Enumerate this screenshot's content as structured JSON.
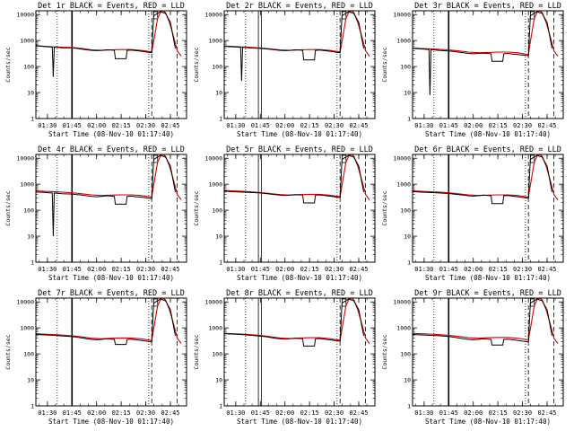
{
  "figure": {
    "background": "#ffffff",
    "event_color": "#000000",
    "lld_color": "#d40000"
  },
  "chart_data": {
    "type": "line",
    "ylabel": "Counts/sec",
    "xlabel": "Start Time (08-Nov-10 01:17:40)",
    "ylim": [
      1,
      14000
    ],
    "yscale": "log",
    "xlim": [
      1.383,
      2.914
    ],
    "x_ticks": [
      1.5,
      1.75,
      2.0,
      2.25,
      2.5,
      2.75
    ],
    "x_tick_labels": [
      "01:30",
      "01:45",
      "02:00",
      "02:15",
      "02:30",
      "02:45"
    ],
    "y_ticks": [
      1,
      10,
      100,
      1000,
      10000
    ],
    "y_tick_labels": [
      "1",
      "10",
      "100",
      "1000",
      "10000"
    ],
    "markers": {
      "dotted": [
        1.6,
        2.53
      ],
      "dashed": [
        2.56,
        2.818
      ],
      "legend_box": [
        2.58,
        2.62
      ]
    },
    "panels": [
      {
        "title": "Det 1r BLACK = Events, RED = LLD",
        "event_x": [
          1.383,
          1.45,
          1.52,
          1.55,
          1.56,
          1.57,
          1.6,
          1.65,
          1.75,
          1.8,
          1.85,
          1.9,
          1.95,
          2.0,
          2.05,
          2.1,
          2.15,
          2.18,
          2.19,
          2.3,
          2.31,
          2.35,
          2.4,
          2.45,
          2.5,
          2.53,
          2.56,
          2.58,
          2.6,
          2.65,
          2.7,
          2.75,
          2.8
        ],
        "event_y": [
          650,
          600,
          570,
          560,
          40,
          560,
          550,
          530,
          520,
          500,
          470,
          440,
          420,
          410,
          420,
          440,
          430,
          420,
          200,
          200,
          420,
          430,
          410,
          390,
          370,
          350,
          340,
          9000,
          10000,
          13000,
          11000,
          5000,
          500
        ],
        "lld_x": [
          1.383,
          1.45,
          1.55,
          1.65,
          1.75,
          1.85,
          1.95,
          2.05,
          2.15,
          2.25,
          2.35,
          2.45,
          2.53,
          2.56,
          2.58,
          2.62,
          2.66,
          2.7,
          2.74,
          2.78,
          2.82,
          2.86
        ],
        "lld_y": [
          640,
          610,
          580,
          560,
          540,
          500,
          440,
          420,
          440,
          450,
          450,
          420,
          380,
          370,
          900,
          7000,
          15000,
          12000,
          5000,
          1500,
          400,
          250
        ],
        "vline_solid": [
          1.75
        ]
      },
      {
        "title": "Det 2r BLACK = Events, RED = LLD",
        "event_x": [
          1.383,
          1.45,
          1.52,
          1.55,
          1.56,
          1.57,
          1.6,
          1.65,
          1.75,
          1.8,
          1.85,
          1.9,
          1.95,
          2.0,
          2.05,
          2.1,
          2.15,
          2.18,
          2.19,
          2.3,
          2.31,
          2.35,
          2.4,
          2.45,
          2.5,
          2.53,
          2.56,
          2.58,
          2.6,
          2.65,
          2.7,
          2.75,
          2.8
        ],
        "event_y": [
          600,
          580,
          560,
          550,
          28,
          550,
          540,
          520,
          500,
          480,
          460,
          440,
          420,
          410,
          420,
          440,
          430,
          420,
          180,
          180,
          420,
          430,
          410,
          390,
          370,
          350,
          340,
          9000,
          10000,
          13000,
          11000,
          5000,
          500
        ],
        "lld_x": [
          1.383,
          1.45,
          1.55,
          1.65,
          1.75,
          1.85,
          1.95,
          2.05,
          2.15,
          2.25,
          2.35,
          2.45,
          2.53,
          2.56,
          2.58,
          2.62,
          2.66,
          2.7,
          2.74,
          2.78,
          2.82,
          2.86
        ],
        "lld_y": [
          620,
          600,
          570,
          550,
          520,
          480,
          440,
          420,
          440,
          450,
          450,
          420,
          380,
          370,
          900,
          7000,
          15000,
          12000,
          5000,
          1500,
          400,
          250
        ],
        "vline_solid": [
          1.73,
          1.76
        ]
      },
      {
        "title": "Det 3r BLACK = Events, RED = LLD",
        "event_x": [
          1.383,
          1.45,
          1.52,
          1.55,
          1.56,
          1.57,
          1.6,
          1.65,
          1.75,
          1.8,
          1.85,
          1.9,
          1.95,
          2.0,
          2.05,
          2.1,
          2.15,
          2.18,
          2.19,
          2.3,
          2.31,
          2.35,
          2.4,
          2.45,
          2.5,
          2.53,
          2.56,
          2.58,
          2.6,
          2.65,
          2.7,
          2.75,
          2.8
        ],
        "event_y": [
          500,
          480,
          460,
          450,
          8,
          450,
          440,
          420,
          400,
          380,
          360,
          340,
          320,
          310,
          320,
          330,
          320,
          310,
          160,
          160,
          310,
          320,
          300,
          290,
          280,
          270,
          260,
          9000,
          10000,
          13000,
          11000,
          5000,
          500
        ],
        "lld_x": [
          1.383,
          1.45,
          1.55,
          1.65,
          1.75,
          1.85,
          1.95,
          2.05,
          2.15,
          2.25,
          2.35,
          2.45,
          2.53,
          2.56,
          2.58,
          2.62,
          2.66,
          2.7,
          2.74,
          2.78,
          2.82,
          2.86
        ],
        "lld_y": [
          520,
          500,
          480,
          460,
          440,
          400,
          360,
          340,
          350,
          360,
          360,
          340,
          300,
          290,
          900,
          7000,
          15000,
          12000,
          5000,
          1500,
          400,
          250
        ],
        "vline_solid": [
          1.75
        ]
      },
      {
        "title": "Det 4r BLACK = Events, RED = LLD",
        "event_x": [
          1.383,
          1.45,
          1.52,
          1.55,
          1.56,
          1.57,
          1.6,
          1.65,
          1.75,
          1.8,
          1.85,
          1.9,
          1.95,
          2.0,
          2.05,
          2.1,
          2.15,
          2.18,
          2.19,
          2.3,
          2.31,
          2.35,
          2.4,
          2.45,
          2.5,
          2.53,
          2.56,
          2.58,
          2.6,
          2.65,
          2.7,
          2.75,
          2.8
        ],
        "event_y": [
          500,
          490,
          470,
          460,
          10,
          460,
          450,
          430,
          420,
          400,
          380,
          360,
          340,
          330,
          340,
          360,
          350,
          340,
          170,
          170,
          340,
          350,
          330,
          320,
          300,
          290,
          280,
          9000,
          10000,
          13000,
          11000,
          5000,
          500
        ],
        "lld_x": [
          1.383,
          1.45,
          1.55,
          1.65,
          1.75,
          1.85,
          1.95,
          2.05,
          2.15,
          2.25,
          2.35,
          2.45,
          2.53,
          2.56,
          2.58,
          2.62,
          2.66,
          2.7,
          2.74,
          2.78,
          2.82,
          2.86
        ],
        "lld_y": [
          560,
          540,
          520,
          500,
          470,
          430,
          390,
          370,
          380,
          390,
          390,
          370,
          330,
          320,
          900,
          7000,
          15000,
          12000,
          5000,
          1500,
          400,
          250
        ],
        "vline_solid": [
          1.75
        ]
      },
      {
        "title": "Det 5r BLACK = Events, RED = LLD",
        "event_x": [
          1.383,
          1.45,
          1.55,
          1.65,
          1.75,
          1.8,
          1.85,
          1.9,
          1.95,
          2.0,
          2.05,
          2.1,
          2.15,
          2.18,
          2.19,
          2.3,
          2.31,
          2.35,
          2.4,
          2.45,
          2.5,
          2.53,
          2.56,
          2.58,
          2.6,
          2.65,
          2.7,
          2.75,
          2.8
        ],
        "event_y": [
          550,
          520,
          500,
          480,
          460,
          440,
          420,
          400,
          380,
          370,
          380,
          400,
          390,
          380,
          190,
          190,
          380,
          390,
          370,
          350,
          330,
          320,
          310,
          9000,
          10000,
          13000,
          11000,
          5000,
          500
        ],
        "lld_x": [
          1.383,
          1.45,
          1.55,
          1.65,
          1.75,
          1.85,
          1.95,
          2.05,
          2.15,
          2.25,
          2.35,
          2.45,
          2.53,
          2.56,
          2.58,
          2.62,
          2.66,
          2.7,
          2.74,
          2.78,
          2.82,
          2.86
        ],
        "lld_y": [
          580,
          560,
          540,
          510,
          480,
          440,
          400,
          380,
          400,
          410,
          410,
          380,
          340,
          330,
          900,
          7000,
          15000,
          12000,
          5000,
          1500,
          400,
          250
        ],
        "vline_solid": [
          1.73,
          1.76
        ]
      },
      {
        "title": "Det 6r BLACK = Events, RED = LLD",
        "event_x": [
          1.383,
          1.45,
          1.55,
          1.65,
          1.75,
          1.8,
          1.85,
          1.9,
          1.95,
          2.0,
          2.05,
          2.1,
          2.15,
          2.18,
          2.19,
          2.3,
          2.31,
          2.35,
          2.4,
          2.45,
          2.5,
          2.53,
          2.56,
          2.58,
          2.6,
          2.65,
          2.7,
          2.75,
          2.8
        ],
        "event_y": [
          520,
          500,
          480,
          460,
          440,
          420,
          400,
          380,
          360,
          350,
          360,
          380,
          370,
          360,
          180,
          180,
          360,
          370,
          350,
          330,
          310,
          300,
          290,
          9000,
          10000,
          13000,
          11000,
          5000,
          500
        ],
        "lld_x": [
          1.383,
          1.45,
          1.55,
          1.65,
          1.75,
          1.85,
          1.95,
          2.05,
          2.15,
          2.25,
          2.35,
          2.45,
          2.53,
          2.56,
          2.58,
          2.62,
          2.66,
          2.7,
          2.74,
          2.78,
          2.82,
          2.86
        ],
        "lld_y": [
          560,
          540,
          520,
          500,
          470,
          430,
          390,
          370,
          380,
          390,
          390,
          370,
          330,
          320,
          900,
          7000,
          15000,
          12000,
          5000,
          1500,
          400,
          250
        ],
        "vline_solid": [
          1.75
        ]
      },
      {
        "title": "Det 7r BLACK = Events, RED = LLD",
        "event_x": [
          1.383,
          1.45,
          1.55,
          1.65,
          1.75,
          1.8,
          1.85,
          1.9,
          1.95,
          2.0,
          2.05,
          2.1,
          2.15,
          2.18,
          2.19,
          2.3,
          2.31,
          2.35,
          2.4,
          2.45,
          2.5,
          2.53,
          2.56,
          2.58,
          2.6,
          2.65,
          2.7,
          2.75,
          2.8
        ],
        "event_y": [
          560,
          540,
          520,
          490,
          460,
          440,
          410,
          380,
          360,
          350,
          360,
          380,
          370,
          360,
          230,
          230,
          360,
          370,
          350,
          330,
          310,
          300,
          290,
          9000,
          10000,
          13000,
          11000,
          5000,
          500
        ],
        "lld_x": [
          1.383,
          1.45,
          1.55,
          1.65,
          1.75,
          1.85,
          1.95,
          2.05,
          2.15,
          2.25,
          2.35,
          2.45,
          2.53,
          2.56,
          2.58,
          2.62,
          2.66,
          2.7,
          2.74,
          2.78,
          2.82,
          2.86
        ],
        "lld_y": [
          600,
          580,
          560,
          530,
          500,
          450,
          400,
          380,
          400,
          410,
          410,
          380,
          340,
          330,
          900,
          7000,
          15000,
          12000,
          5000,
          1500,
          400,
          250
        ],
        "vline_solid": [
          1.75
        ]
      },
      {
        "title": "Det 8r BLACK = Events, RED = LLD",
        "event_x": [
          1.383,
          1.45,
          1.55,
          1.65,
          1.75,
          1.8,
          1.85,
          1.9,
          1.95,
          2.0,
          2.05,
          2.1,
          2.15,
          2.18,
          2.19,
          2.3,
          2.31,
          2.35,
          2.4,
          2.45,
          2.5,
          2.53,
          2.56,
          2.58,
          2.6,
          2.65,
          2.7,
          2.75,
          2.8
        ],
        "event_y": [
          600,
          580,
          560,
          520,
          480,
          460,
          430,
          400,
          380,
          370,
          380,
          400,
          390,
          380,
          200,
          200,
          380,
          390,
          370,
          350,
          330,
          320,
          310,
          9000,
          10000,
          13000,
          11000,
          5000,
          500
        ],
        "lld_x": [
          1.383,
          1.45,
          1.55,
          1.65,
          1.75,
          1.85,
          1.95,
          2.05,
          2.15,
          2.25,
          2.35,
          2.45,
          2.53,
          2.56,
          2.58,
          2.62,
          2.66,
          2.7,
          2.74,
          2.78,
          2.82,
          2.86
        ],
        "lld_y": [
          620,
          600,
          580,
          550,
          510,
          460,
          410,
          390,
          410,
          420,
          420,
          390,
          350,
          340,
          900,
          7000,
          15000,
          12000,
          5000,
          1500,
          400,
          250
        ],
        "vline_solid": [
          1.73,
          1.76
        ]
      },
      {
        "title": "Det 9r BLACK = Events, RED = LLD",
        "event_x": [
          1.383,
          1.45,
          1.55,
          1.65,
          1.75,
          1.8,
          1.85,
          1.9,
          1.95,
          2.0,
          2.05,
          2.1,
          2.15,
          2.18,
          2.19,
          2.3,
          2.31,
          2.35,
          2.4,
          2.45,
          2.5,
          2.53,
          2.56,
          2.58,
          2.6,
          2.65,
          2.7,
          2.75,
          2.8
        ],
        "event_y": [
          560,
          540,
          520,
          500,
          470,
          440,
          410,
          380,
          360,
          350,
          360,
          380,
          370,
          360,
          220,
          220,
          360,
          370,
          350,
          330,
          310,
          300,
          290,
          9000,
          10000,
          13000,
          11000,
          5000,
          500
        ],
        "lld_x": [
          1.383,
          1.45,
          1.55,
          1.65,
          1.75,
          1.85,
          1.95,
          2.05,
          2.15,
          2.25,
          2.35,
          2.45,
          2.53,
          2.56,
          2.58,
          2.62,
          2.66,
          2.7,
          2.74,
          2.78,
          2.82,
          2.86
        ],
        "lld_y": [
          620,
          600,
          580,
          550,
          520,
          470,
          420,
          400,
          420,
          430,
          430,
          400,
          360,
          350,
          900,
          7000,
          15000,
          12000,
          5000,
          1500,
          400,
          250
        ],
        "vline_solid": [
          1.75
        ]
      }
    ]
  }
}
